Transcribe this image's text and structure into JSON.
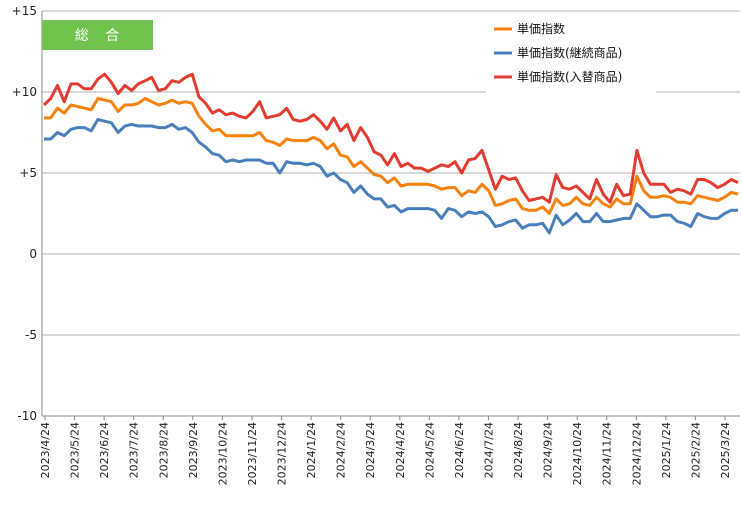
{
  "chart_data": {
    "type": "line",
    "badge": "総 合",
    "ylim": [
      -10,
      15
    ],
    "yticks": [
      {
        "value": 15,
        "label": "+15"
      },
      {
        "value": 10,
        "label": "+10"
      },
      {
        "value": 5,
        "label": "+5"
      },
      {
        "value": 0,
        "label": "0"
      },
      {
        "value": -5,
        "label": "-5"
      },
      {
        "value": -10,
        "label": "-10"
      }
    ],
    "xtick_labels": [
      "2023/4/24",
      "2023/5/24",
      "2023/6/24",
      "2023/7/24",
      "2023/8/24",
      "2023/9/24",
      "2023/10/24",
      "2023/11/24",
      "2023/12/24",
      "2024/1/24",
      "2024/2/24",
      "2024/3/24",
      "2024/4/24",
      "2024/5/24",
      "2024/6/24",
      "2024/7/24",
      "2024/8/24",
      "2024/9/24",
      "2024/10/24",
      "2024/11/24",
      "2024/12/24",
      "2025/1/24",
      "2025/2/24",
      "2025/3/24"
    ],
    "gridlines": "horizontal",
    "legend_position": "top-right",
    "series": [
      {
        "name": "単価指数",
        "color": "#F5820F",
        "values": [
          8.4,
          8.4,
          9.0,
          8.7,
          9.2,
          9.1,
          9.0,
          8.9,
          9.6,
          9.5,
          9.4,
          8.8,
          9.2,
          9.2,
          9.3,
          9.6,
          9.4,
          9.2,
          9.3,
          9.5,
          9.3,
          9.4,
          9.3,
          8.5,
          8.0,
          7.6,
          7.7,
          7.3,
          7.3,
          7.3,
          7.3,
          7.3,
          7.5,
          7.0,
          6.9,
          6.7,
          7.1,
          7.0,
          7.0,
          7.0,
          7.2,
          7.0,
          6.5,
          6.8,
          6.1,
          6.0,
          5.4,
          5.7,
          5.3,
          4.9,
          4.8,
          4.4,
          4.7,
          4.2,
          4.3,
          4.3,
          4.3,
          4.3,
          4.2,
          4.0,
          4.1,
          4.1,
          3.6,
          3.9,
          3.8,
          4.3,
          3.9,
          3.0,
          3.1,
          3.3,
          3.4,
          2.8,
          2.7,
          2.7,
          2.9,
          2.5,
          3.4,
          3.0,
          3.1,
          3.5,
          3.1,
          3.0,
          3.5,
          3.1,
          2.9,
          3.4,
          3.1,
          3.1,
          4.8,
          3.9,
          3.5,
          3.5,
          3.6,
          3.5,
          3.2,
          3.2,
          3.1,
          3.6,
          3.5,
          3.4,
          3.3,
          3.5,
          3.8,
          3.7
        ]
      },
      {
        "name": "単価指数(継続商品)",
        "color": "#4A7EBB",
        "values": [
          7.1,
          7.1,
          7.5,
          7.3,
          7.7,
          7.8,
          7.8,
          7.6,
          8.3,
          8.2,
          8.1,
          7.5,
          7.9,
          8.0,
          7.9,
          7.9,
          7.9,
          7.8,
          7.8,
          8.0,
          7.7,
          7.8,
          7.5,
          6.9,
          6.6,
          6.2,
          6.1,
          5.7,
          5.8,
          5.7,
          5.8,
          5.8,
          5.8,
          5.6,
          5.6,
          5.0,
          5.7,
          5.6,
          5.6,
          5.5,
          5.6,
          5.4,
          4.8,
          5.0,
          4.6,
          4.4,
          3.8,
          4.2,
          3.7,
          3.4,
          3.4,
          2.9,
          3.0,
          2.6,
          2.8,
          2.8,
          2.8,
          2.8,
          2.7,
          2.2,
          2.8,
          2.7,
          2.3,
          2.6,
          2.5,
          2.6,
          2.3,
          1.7,
          1.8,
          2.0,
          2.1,
          1.6,
          1.8,
          1.8,
          1.9,
          1.3,
          2.4,
          1.8,
          2.1,
          2.5,
          2.0,
          2.0,
          2.5,
          2.0,
          2.0,
          2.1,
          2.2,
          2.2,
          3.1,
          2.7,
          2.3,
          2.3,
          2.4,
          2.4,
          2.0,
          1.9,
          1.7,
          2.5,
          2.3,
          2.2,
          2.2,
          2.5,
          2.7,
          2.7
        ]
      },
      {
        "name": "単価指数(入替商品)",
        "color": "#E03C31",
        "values": [
          9.2,
          9.6,
          10.4,
          9.4,
          10.5,
          10.5,
          10.2,
          10.2,
          10.8,
          11.1,
          10.6,
          9.9,
          10.4,
          10.1,
          10.5,
          10.7,
          10.9,
          10.1,
          10.2,
          10.7,
          10.6,
          10.9,
          11.1,
          9.7,
          9.3,
          8.7,
          8.9,
          8.6,
          8.7,
          8.5,
          8.4,
          8.8,
          9.4,
          8.4,
          8.5,
          8.6,
          9.0,
          8.3,
          8.2,
          8.3,
          8.6,
          8.2,
          7.7,
          8.4,
          7.6,
          8.0,
          7.0,
          7.8,
          7.2,
          6.3,
          6.1,
          5.5,
          6.2,
          5.4,
          5.6,
          5.3,
          5.3,
          5.1,
          5.3,
          5.5,
          5.4,
          5.7,
          5.0,
          5.8,
          5.9,
          6.4,
          5.2,
          4.0,
          4.8,
          4.6,
          4.7,
          3.9,
          3.3,
          3.4,
          3.5,
          3.2,
          4.9,
          4.1,
          4.0,
          4.2,
          3.8,
          3.4,
          4.6,
          3.7,
          3.2,
          4.3,
          3.6,
          3.7,
          6.4,
          5.0,
          4.3,
          4.3,
          4.3,
          3.8,
          4.0,
          3.9,
          3.7,
          4.6,
          4.6,
          4.4,
          4.1,
          4.3,
          4.6,
          4.4
        ]
      }
    ]
  }
}
